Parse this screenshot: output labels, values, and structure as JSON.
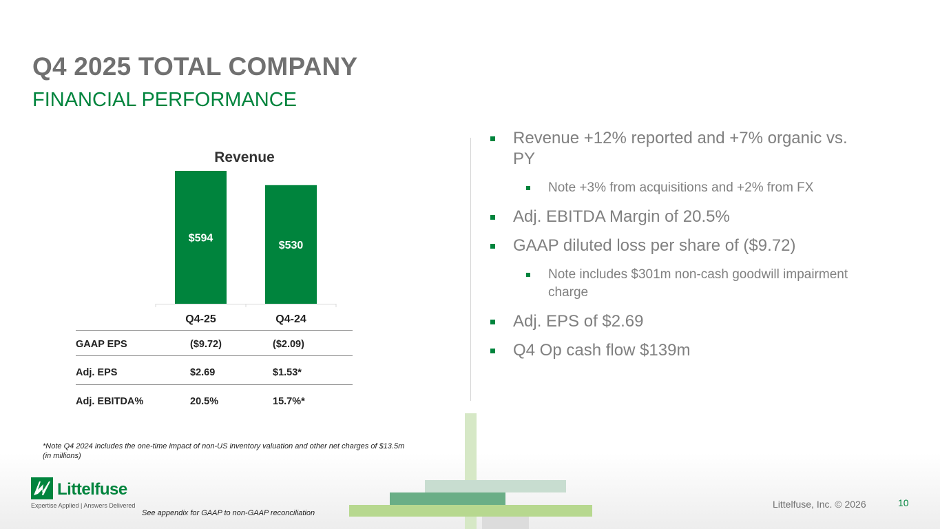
{
  "slide": {
    "title": "Q4 2025 TOTAL COMPANY",
    "subtitle": "FINANCIAL PERFORMANCE"
  },
  "chart_data": {
    "type": "bar",
    "title": "Revenue",
    "categories": [
      "Q4-25",
      "Q4-24"
    ],
    "values": [
      594,
      530
    ],
    "value_labels": [
      "$594",
      "$530"
    ],
    "color": "#00843d",
    "xlabel": "",
    "ylabel": "",
    "grid": false,
    "legend": "none"
  },
  "metrics": {
    "rows": [
      {
        "label": "GAAP EPS",
        "q425": "($9.72)",
        "q424": "($2.09)"
      },
      {
        "label": "Adj. EPS",
        "q425": "$2.69",
        "q424": "$1.53*"
      },
      {
        "label": "Adj. EBITDA%",
        "q425": "20.5%",
        "q424": "15.7%*"
      }
    ]
  },
  "bullets": [
    {
      "level": 1,
      "text": "Revenue +12% reported and +7% organic vs. PY"
    },
    {
      "level": 2,
      "text": "Note +3% from acquisitions and +2% from FX"
    },
    {
      "level": 1,
      "text": "Adj. EBITDA Margin of 20.5%"
    },
    {
      "level": 1,
      "text": "GAAP diluted loss per share of ($9.72)"
    },
    {
      "level": 2,
      "text": "Note includes $301m non-cash goodwill impairment charge"
    },
    {
      "level": 1,
      "text": "Adj. EPS of $2.69"
    },
    {
      "level": 1,
      "text": "Q4 Op cash flow $139m"
    }
  ],
  "footnote": {
    "line1": "*Note Q4 2024 includes the one-time impact of non-US inventory valuation and other net charges of $13.5m",
    "line2": "(in millions)"
  },
  "footer": {
    "appendix": "See appendix for GAAP to non-GAAP reconciliation",
    "copyright": "Littelfuse, Inc. © 2026",
    "page_number": "10",
    "logo_name": "Littelfuse",
    "logo_tagline": "Expertise Applied | Answers Delivered"
  },
  "colors": {
    "accent": "#00843d",
    "title_gray": "#707070"
  }
}
